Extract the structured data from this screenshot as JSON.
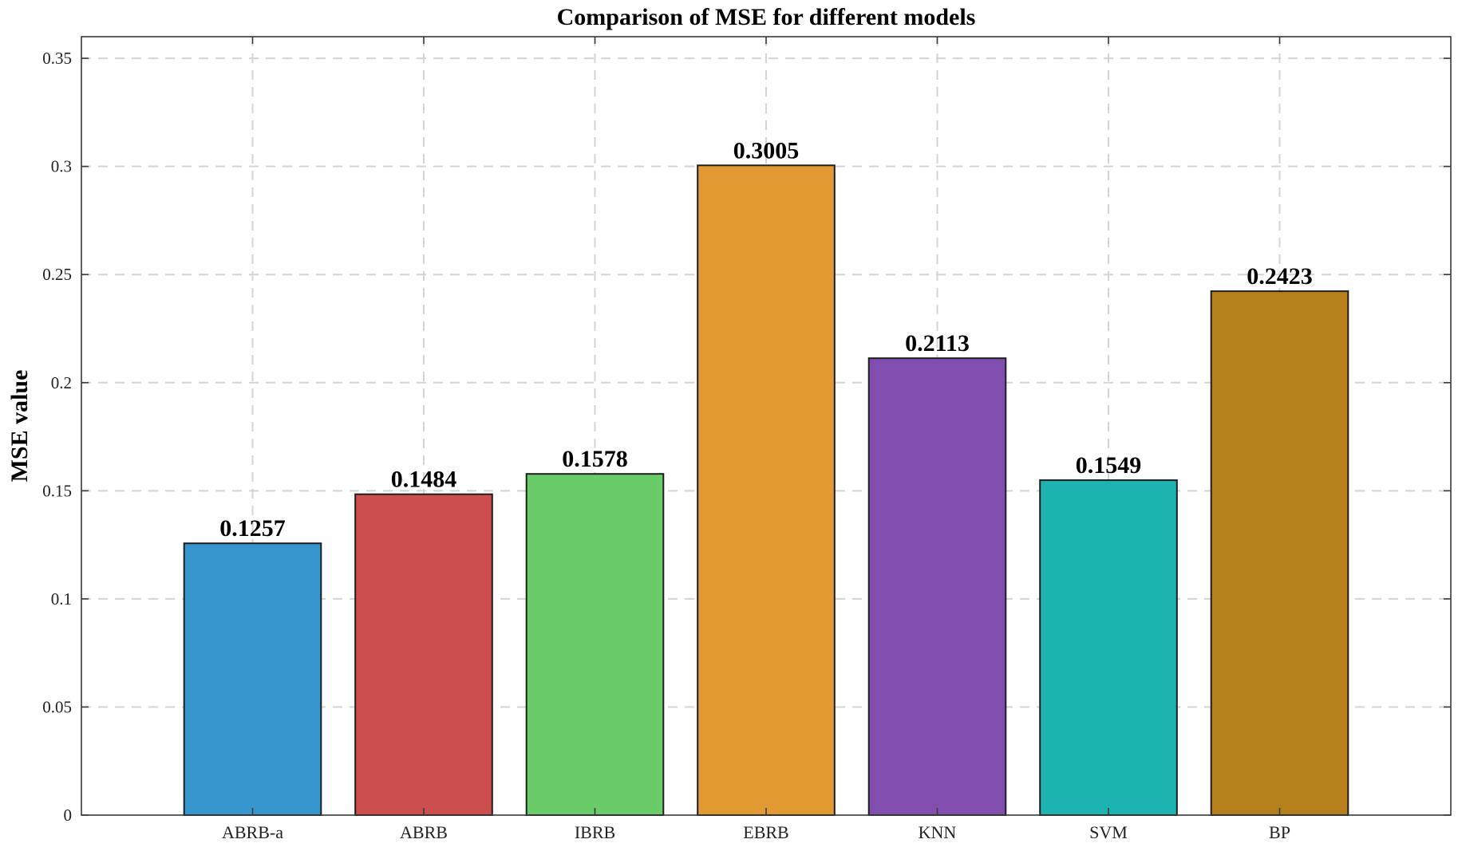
{
  "chart_data": {
    "type": "bar",
    "title": "Comparison of MSE for different models",
    "xlabel": "",
    "ylabel": "MSE value",
    "categories": [
      "ABRB-a",
      "ABRB",
      "IBRB",
      "EBRB",
      "KNN",
      "SVM",
      "BP"
    ],
    "values": [
      0.1257,
      0.1484,
      0.1578,
      0.3005,
      0.2113,
      0.1549,
      0.2423
    ],
    "value_labels": [
      "0.1257",
      "0.1484",
      "0.1578",
      "0.3005",
      "0.2113",
      "0.1549",
      "0.2423"
    ],
    "colors": [
      "#3597ce",
      "#cc4e4f",
      "#69cc69",
      "#e49a33",
      "#814eb0",
      "#1cb3b1",
      "#b57f1c"
    ],
    "ylim": [
      0,
      0.36
    ],
    "xlim": [
      0,
      8
    ],
    "yticks": [
      0,
      0.05,
      0.1,
      0.15,
      0.2,
      0.25,
      0.3,
      0.35
    ],
    "ytick_labels": [
      "0",
      "0.05",
      "0.1",
      "0.15",
      "0.2",
      "0.25",
      "0.3",
      "0.35"
    ],
    "grid": true
  }
}
